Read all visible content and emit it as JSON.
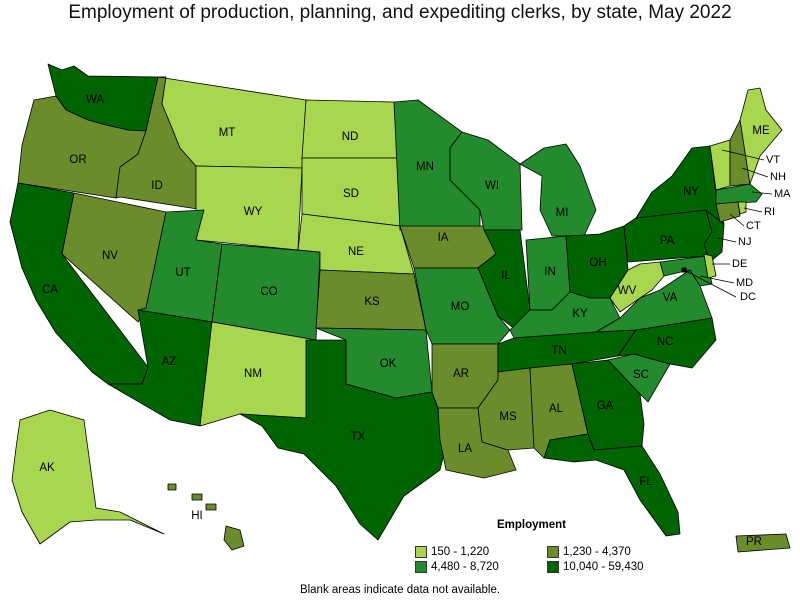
{
  "title": "Employment of production, planning, and expediting clerks, by state, May 2022",
  "legend": {
    "title": "Employment",
    "items": [
      {
        "label": "150 - 1,220",
        "color": "#a8d64f"
      },
      {
        "label": "1,230 - 4,370",
        "color": "#6b8c2a"
      },
      {
        "label": "4,480 - 8,720",
        "color": "#238b2d"
      },
      {
        "label": "10,040 - 59,430",
        "color": "#006400"
      }
    ]
  },
  "footnote": "Blank areas indicate data not available.",
  "states": {
    "WA": {
      "label": "WA",
      "tier": 3
    },
    "OR": {
      "label": "OR",
      "tier": 1
    },
    "CA": {
      "label": "CA",
      "tier": 3
    },
    "NV": {
      "label": "NV",
      "tier": 1
    },
    "ID": {
      "label": "ID",
      "tier": 1
    },
    "MT": {
      "label": "MT",
      "tier": 0
    },
    "WY": {
      "label": "WY",
      "tier": 0
    },
    "UT": {
      "label": "UT",
      "tier": 2
    },
    "AZ": {
      "label": "AZ",
      "tier": 3
    },
    "CO": {
      "label": "CO",
      "tier": 2
    },
    "NM": {
      "label": "NM",
      "tier": 0
    },
    "ND": {
      "label": "ND",
      "tier": 0
    },
    "SD": {
      "label": "SD",
      "tier": 0
    },
    "NE": {
      "label": "NE",
      "tier": 0
    },
    "KS": {
      "label": "KS",
      "tier": 1
    },
    "OK": {
      "label": "OK",
      "tier": 2
    },
    "TX": {
      "label": "TX",
      "tier": 3
    },
    "MN": {
      "label": "MN",
      "tier": 2
    },
    "IA": {
      "label": "IA",
      "tier": 1
    },
    "MO": {
      "label": "MO",
      "tier": 2
    },
    "AR": {
      "label": "AR",
      "tier": 1
    },
    "LA": {
      "label": "LA",
      "tier": 1
    },
    "WI": {
      "label": "WI",
      "tier": 2
    },
    "IL": {
      "label": "IL",
      "tier": 3
    },
    "MI": {
      "label": "MI",
      "tier": 2
    },
    "IN": {
      "label": "IN",
      "tier": 2
    },
    "OH": {
      "label": "OH",
      "tier": 3
    },
    "KY": {
      "label": "KY",
      "tier": 2
    },
    "TN": {
      "label": "TN",
      "tier": 3
    },
    "MS": {
      "label": "MS",
      "tier": 1
    },
    "AL": {
      "label": "AL",
      "tier": 1
    },
    "GA": {
      "label": "GA",
      "tier": 3
    },
    "FL": {
      "label": "FL",
      "tier": 3
    },
    "SC": {
      "label": "SC",
      "tier": 2
    },
    "NC": {
      "label": "NC",
      "tier": 3
    },
    "VA": {
      "label": "VA",
      "tier": 2
    },
    "WV": {
      "label": "WV",
      "tier": 0
    },
    "PA": {
      "label": "PA",
      "tier": 3
    },
    "NY": {
      "label": "NY",
      "tier": 3
    },
    "NJ": {
      "label": "NJ",
      "tier": 3
    },
    "DE": {
      "label": "DE",
      "tier": 0
    },
    "MD": {
      "label": "MD",
      "tier": 2
    },
    "DC": {
      "label": "DC",
      "tier": 0
    },
    "CT": {
      "label": "CT",
      "tier": 1
    },
    "RI": {
      "label": "RI",
      "tier": 0
    },
    "MA": {
      "label": "MA",
      "tier": 2
    },
    "VT": {
      "label": "VT",
      "tier": 0
    },
    "NH": {
      "label": "NH",
      "tier": 1
    },
    "ME": {
      "label": "ME",
      "tier": 0
    },
    "AK": {
      "label": "AK",
      "tier": 0
    },
    "HI": {
      "label": "HI",
      "tier": 1
    },
    "PR": {
      "label": "PR",
      "tier": 1
    }
  }
}
